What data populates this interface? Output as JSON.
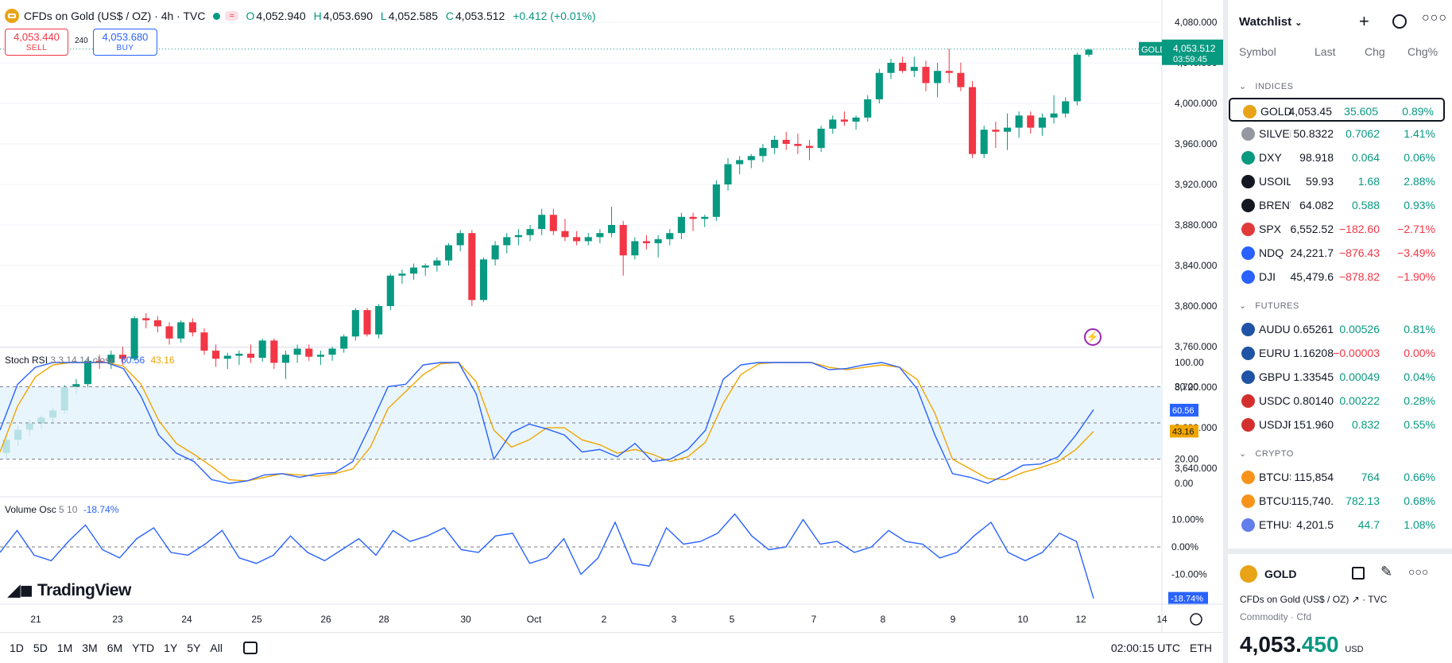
{
  "header": {
    "title": "CFDs on Gold (US$ / OZ) · 4h · TVC",
    "badge": "≈",
    "open_label": "O",
    "open": "4,052.940",
    "high_label": "H",
    "high": "4,053.690",
    "low_label": "L",
    "low": "4,052.585",
    "close_label": "C",
    "close": "4,053.512",
    "change": "+0.412 (+0.01%)"
  },
  "trade": {
    "sell_price": "4,053.440",
    "sell_label": "SELL",
    "spread": "240",
    "buy_price": "4,053.680",
    "buy_label": "BUY"
  },
  "price_axis": {
    "ticks": [
      "4,080.000",
      "4,040.000",
      "4,000.000",
      "3,960.000",
      "3,920.000",
      "3,880.000",
      "3,840.000",
      "3,800.000",
      "3,760.000",
      "3,720.000",
      "3,680.000",
      "3,640.000"
    ],
    "ticker_tag": "GOLD",
    "last_price": "4,053.512",
    "countdown": "03:59:45"
  },
  "chart_data": {
    "type": "candlestick",
    "symbol": "GOLD",
    "ylim": [
      3600,
      4085
    ],
    "candles": [
      [
        3655,
        3672,
        3650,
        3668
      ],
      [
        3668,
        3682,
        3662,
        3678
      ],
      [
        3678,
        3688,
        3672,
        3684
      ],
      [
        3684,
        3692,
        3679,
        3690
      ],
      [
        3690,
        3700,
        3685,
        3697
      ],
      [
        3697,
        3722,
        3694,
        3720
      ],
      [
        3720,
        3728,
        3712,
        3723
      ],
      [
        3723,
        3748,
        3718,
        3746
      ],
      [
        3746,
        3752,
        3738,
        3744
      ],
      [
        3744,
        3756,
        3738,
        3752
      ],
      [
        3752,
        3760,
        3742,
        3748
      ],
      [
        3748,
        3790,
        3746,
        3788
      ],
      [
        3788,
        3793,
        3778,
        3786
      ],
      [
        3786,
        3790,
        3774,
        3780
      ],
      [
        3780,
        3784,
        3762,
        3768
      ],
      [
        3768,
        3786,
        3764,
        3784
      ],
      [
        3784,
        3788,
        3770,
        3774
      ],
      [
        3774,
        3778,
        3752,
        3756
      ],
      [
        3756,
        3762,
        3740,
        3748
      ],
      [
        3748,
        3754,
        3738,
        3751
      ],
      [
        3751,
        3756,
        3742,
        3753
      ],
      [
        3753,
        3762,
        3744,
        3749
      ],
      [
        3749,
        3768,
        3745,
        3766
      ],
      [
        3766,
        3768,
        3738,
        3744
      ],
      [
        3744,
        3756,
        3728,
        3752
      ],
      [
        3752,
        3762,
        3744,
        3758
      ],
      [
        3758,
        3762,
        3746,
        3750
      ],
      [
        3750,
        3756,
        3742,
        3752
      ],
      [
        3752,
        3760,
        3746,
        3758
      ],
      [
        3758,
        3772,
        3754,
        3770
      ],
      [
        3770,
        3798,
        3766,
        3796
      ],
      [
        3796,
        3798,
        3770,
        3772
      ],
      [
        3772,
        3802,
        3768,
        3800
      ],
      [
        3800,
        3832,
        3796,
        3830
      ],
      [
        3830,
        3836,
        3822,
        3832
      ],
      [
        3832,
        3842,
        3826,
        3838
      ],
      [
        3838,
        3842,
        3830,
        3840
      ],
      [
        3840,
        3848,
        3834,
        3845
      ],
      [
        3845,
        3862,
        3840,
        3860
      ],
      [
        3860,
        3875,
        3854,
        3872
      ],
      [
        3872,
        3875,
        3800,
        3806
      ],
      [
        3806,
        3848,
        3804,
        3846
      ],
      [
        3846,
        3864,
        3840,
        3860
      ],
      [
        3860,
        3872,
        3852,
        3868
      ],
      [
        3868,
        3876,
        3860,
        3870
      ],
      [
        3870,
        3880,
        3864,
        3876
      ],
      [
        3876,
        3896,
        3870,
        3890
      ],
      [
        3890,
        3896,
        3870,
        3874
      ],
      [
        3874,
        3886,
        3864,
        3868
      ],
      [
        3868,
        3874,
        3860,
        3864
      ],
      [
        3864,
        3872,
        3860,
        3868
      ],
      [
        3868,
        3876,
        3862,
        3872
      ],
      [
        3872,
        3898,
        3868,
        3880
      ],
      [
        3880,
        3884,
        3830,
        3850
      ],
      [
        3850,
        3868,
        3846,
        3864
      ],
      [
        3864,
        3870,
        3856,
        3862
      ],
      [
        3862,
        3870,
        3848,
        3866
      ],
      [
        3866,
        3876,
        3860,
        3872
      ],
      [
        3872,
        3892,
        3866,
        3888
      ],
      [
        3888,
        3892,
        3874,
        3886
      ],
      [
        3886,
        3890,
        3878,
        3888
      ],
      [
        3888,
        3924,
        3884,
        3920
      ],
      [
        3920,
        3946,
        3914,
        3940
      ],
      [
        3940,
        3948,
        3930,
        3944
      ],
      [
        3944,
        3950,
        3936,
        3948
      ],
      [
        3948,
        3960,
        3942,
        3956
      ],
      [
        3956,
        3968,
        3950,
        3964
      ],
      [
        3964,
        3972,
        3954,
        3960
      ],
      [
        3960,
        3970,
        3950,
        3958
      ],
      [
        3958,
        3964,
        3944,
        3956
      ],
      [
        3956,
        3978,
        3952,
        3975
      ],
      [
        3975,
        3988,
        3970,
        3984
      ],
      [
        3984,
        3992,
        3978,
        3982
      ],
      [
        3982,
        3988,
        3974,
        3986
      ],
      [
        3986,
        4008,
        3982,
        4004
      ],
      [
        4004,
        4034,
        4000,
        4030
      ],
      [
        4030,
        4044,
        4024,
        4040
      ],
      [
        4040,
        4046,
        4030,
        4032
      ],
      [
        4032,
        4046,
        4026,
        4036
      ],
      [
        4036,
        4042,
        4012,
        4020
      ],
      [
        4020,
        4040,
        4006,
        4032
      ],
      [
        4032,
        4054,
        4020,
        4030
      ],
      [
        4030,
        4040,
        4012,
        4016
      ],
      [
        4016,
        4022,
        3946,
        3950
      ],
      [
        3950,
        3978,
        3946,
        3974
      ],
      [
        3974,
        3982,
        3956,
        3972
      ],
      [
        3972,
        3990,
        3954,
        3976
      ],
      [
        3976,
        3992,
        3966,
        3988
      ],
      [
        3988,
        3992,
        3970,
        3976
      ],
      [
        3976,
        3990,
        3968,
        3986
      ],
      [
        3986,
        4008,
        3980,
        3990
      ],
      [
        3990,
        4006,
        3986,
        4002
      ],
      [
        4002,
        4050,
        3998,
        4048
      ],
      [
        4048,
        4054,
        4046,
        4053
      ]
    ],
    "x_ticks": [
      "21",
      "23",
      "24",
      "25",
      "26",
      "28",
      "30",
      "Oct",
      "2",
      "3",
      "5",
      "7",
      "8",
      "9",
      "10",
      "12",
      "14"
    ],
    "stoch_rsi": {
      "label": "Stoch RSI",
      "params": "3 3 14 14 close",
      "k_value": "60.56",
      "d_value": "43.16",
      "ticks": [
        "100.00",
        "80.00",
        "20.00",
        "0.00"
      ],
      "k": [
        44,
        82,
        96,
        100,
        100,
        100,
        100,
        95,
        72,
        40,
        25,
        18,
        3,
        0,
        2,
        7,
        8,
        5,
        8,
        9,
        18,
        48,
        80,
        82,
        98,
        100,
        100,
        74,
        20,
        42,
        49,
        45,
        40,
        26,
        28,
        22,
        33,
        18,
        20,
        28,
        44,
        86,
        98,
        100,
        100,
        100,
        100,
        94,
        95,
        98,
        100,
        96,
        78,
        40,
        8,
        5,
        0,
        7,
        15,
        16,
        22,
        40,
        61
      ],
      "d": [
        26,
        64,
        88,
        98,
        100,
        100,
        100,
        97,
        82,
        52,
        33,
        24,
        14,
        3,
        2,
        5,
        8,
        7,
        6,
        8,
        12,
        30,
        62,
        76,
        90,
        99,
        100,
        84,
        44,
        30,
        36,
        46,
        46,
        36,
        32,
        25,
        28,
        24,
        18,
        22,
        34,
        66,
        90,
        99,
        100,
        100,
        100,
        96,
        94,
        96,
        98,
        96,
        86,
        58,
        20,
        12,
        4,
        3,
        9,
        13,
        18,
        28,
        43
      ]
    },
    "volume_osc": {
      "label": "Volume Osc",
      "params": "5 10",
      "value": "-18.74%",
      "ticks": [
        "10.00%",
        "0.00%",
        "-10.00%"
      ],
      "values": [
        -2,
        6,
        -3,
        -5,
        2,
        8,
        -1,
        -4,
        3,
        7,
        -2,
        -3,
        1,
        6,
        -4,
        -6,
        -3,
        4,
        -2,
        -5,
        -1,
        3,
        -3,
        6,
        2,
        4,
        7,
        -1,
        -2,
        4,
        5,
        -6,
        -4,
        3,
        -10,
        -4,
        9,
        -6,
        -7,
        7,
        1,
        2,
        5,
        12,
        4,
        -1,
        0,
        10,
        1,
        2,
        -2,
        0,
        6,
        2,
        1,
        -4,
        -2,
        4,
        9,
        -2,
        -5,
        -2,
        5,
        2,
        -18.74
      ]
    }
  },
  "bottom": {
    "timeframes": [
      "1D",
      "5D",
      "1M",
      "3M",
      "6M",
      "YTD",
      "1Y",
      "5Y",
      "All"
    ],
    "clock": "02:00:15 UTC",
    "session": "ETH"
  },
  "watchlist": {
    "title": "Watchlist",
    "columns": {
      "symbol": "Symbol",
      "last": "Last",
      "chg": "Chg",
      "chgp": "Chg%"
    },
    "sections": [
      "INDICES",
      "FUTURES",
      "CRYPTO"
    ],
    "indices": [
      {
        "sym": "GOLD",
        "last": "4,053.45",
        "chg": "35.605",
        "pct": "0.89%",
        "color": "#e8a317",
        "icon": "gold-icon",
        "dir": "g"
      },
      {
        "sym": "SILVER",
        "last": "50.8322",
        "chg": "0.7062",
        "pct": "1.41%",
        "color": "#9598a1",
        "icon": "silver-icon",
        "dir": "g"
      },
      {
        "sym": "DXY",
        "last": "98.918",
        "chg": "0.064",
        "pct": "0.06%",
        "color": "#089981",
        "icon": "dollar-icon",
        "dir": "g"
      },
      {
        "sym": "USOIL",
        "last": "59.93",
        "chg": "1.68",
        "pct": "2.88%",
        "color": "#131722",
        "icon": "oil-drop-icon",
        "dir": "g"
      },
      {
        "sym": "BRENT",
        "last": "64.082",
        "chg": "0.588",
        "pct": "0.93%",
        "color": "#131722",
        "icon": "oil-drop-icon",
        "dir": "g"
      },
      {
        "sym": "SPX",
        "last": "6,552.52",
        "chg": "−182.60",
        "pct": "−2.71%",
        "color": "#e03a3a",
        "icon": "sp500-icon",
        "dir": "r"
      },
      {
        "sym": "NDQ",
        "last": "24,221.7",
        "chg": "−876.43",
        "pct": "−3.49%",
        "color": "#2962ff",
        "icon": "nasdaq-icon",
        "dir": "r"
      },
      {
        "sym": "DJI",
        "last": "45,479.6",
        "chg": "−878.82",
        "pct": "−1.90%",
        "color": "#2962ff",
        "icon": "dow-icon",
        "dir": "r"
      }
    ],
    "futures": [
      {
        "sym": "AUDUSD",
        "last": "0.65261",
        "chg": "0.00526",
        "pct": "0.81%",
        "color": "#1e53a6",
        "icon": "flag-au-icon",
        "dir": "g"
      },
      {
        "sym": "EURUSD",
        "last": "1.16208",
        "chg": "−0.00003",
        "pct": "0.00%",
        "color": "#1e53a6",
        "icon": "flag-eu-icon",
        "dir": "r"
      },
      {
        "sym": "GBPUSD",
        "last": "1.33545",
        "chg": "0.00049",
        "pct": "0.04%",
        "color": "#1e53a6",
        "icon": "flag-gb-icon",
        "dir": "g"
      },
      {
        "sym": "USDCHF",
        "last": "0.80140",
        "chg": "0.00222",
        "pct": "0.28%",
        "color": "#d32f2f",
        "icon": "flag-us-icon",
        "dir": "g"
      },
      {
        "sym": "USDJPY",
        "last": "151.960",
        "chg": "0.832",
        "pct": "0.55%",
        "color": "#d32f2f",
        "icon": "flag-us-icon",
        "dir": "g"
      }
    ],
    "crypto": [
      {
        "sym": "BTCUSD",
        "last": "115,854",
        "chg": "764",
        "pct": "0.66%",
        "color": "#f7931a",
        "icon": "bitcoin-icon",
        "dir": "g"
      },
      {
        "sym": "BTCUSD",
        "last": "115,740.",
        "chg": "782.13",
        "pct": "0.68%",
        "color": "#f7931a",
        "icon": "bitcoin-icon",
        "dir": "g"
      },
      {
        "sym": "ETHUSD",
        "last": "4,201.5",
        "chg": "44.7",
        "pct": "1.08%",
        "color": "#627eea",
        "icon": "ethereum-icon",
        "dir": "g"
      }
    ]
  },
  "detail": {
    "symbol": "GOLD",
    "name": "CFDs on Gold (US$ / OZ)",
    "exchange": "TVC",
    "category": "Commodity · Cfd",
    "price_main": "4,053.",
    "price_tail": "450",
    "currency": "USD"
  },
  "brand": "TradingView"
}
